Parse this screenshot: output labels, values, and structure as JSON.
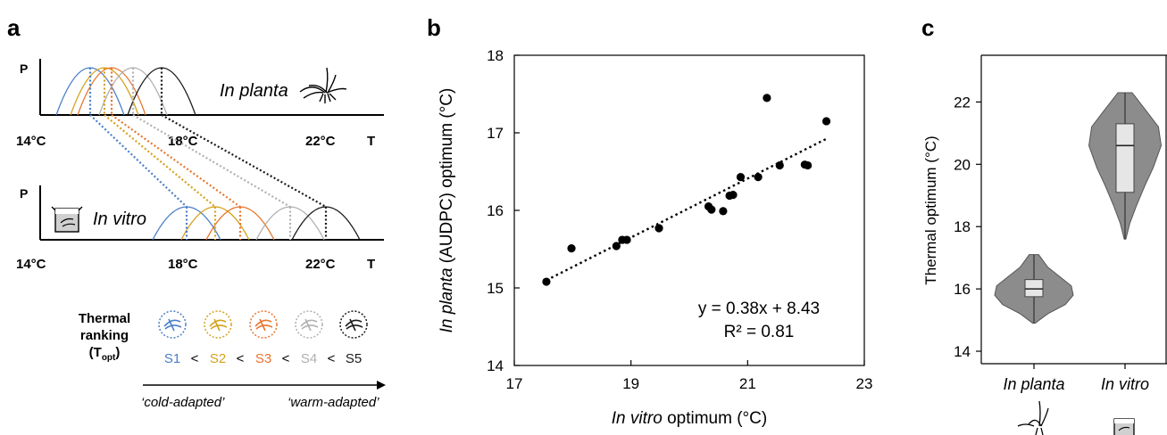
{
  "panels": {
    "a": {
      "label": "a",
      "top_axis": {
        "y_letter": "P",
        "ticks": [
          "14°C",
          "18°C",
          "22°C"
        ],
        "x_letter": "T",
        "title_italic": "In planta"
      },
      "bottom_axis": {
        "y_letter": "P",
        "ticks": [
          "14°C",
          "18°C",
          "22°C"
        ],
        "x_letter": "T",
        "title_italic": "In vitro"
      },
      "ranking": {
        "title_line1": "Thermal",
        "title_line2": "ranking",
        "title_line3_main": "(T",
        "title_line3_sub": "opt",
        "title_line3_end": ")",
        "lt": "<",
        "cold_label": "‘cold-adapted’",
        "warm_label": "‘warm-adapted’"
      },
      "strains": [
        {
          "name": "S1",
          "color": "#4a7fc8",
          "planta_opt": 15.4,
          "vitro_opt": 18.1
        },
        {
          "name": "S2",
          "color": "#d4a21c",
          "planta_opt": 15.8,
          "vitro_opt": 18.9
        },
        {
          "name": "S3",
          "color": "#e8752d",
          "planta_opt": 16.0,
          "vitro_opt": 19.6
        },
        {
          "name": "S4",
          "color": "#b0b0b0",
          "planta_opt": 16.6,
          "vitro_opt": 21.0
        },
        {
          "name": "S5",
          "color": "#1a1a1a",
          "planta_opt": 17.4,
          "vitro_opt": 22.0
        }
      ]
    },
    "b": {
      "label": "b",
      "equation": "y = 0.38x + 8.43",
      "r2": "R² = 0.81",
      "xlabel_italic": "In vitro",
      "xlabel_rest": " optimum (°C)",
      "ylabel_italic": "In  planta",
      "ylabel_rest": " (AUDPC) optimum (°C)"
    },
    "c": {
      "label": "c",
      "ylabel": "Thermal optimum (°C)",
      "categories": [
        "In planta",
        "In vitro"
      ]
    }
  },
  "chart_data": [
    {
      "type": "line",
      "panel": "a",
      "title": "",
      "xlabel": "T",
      "ylabel": "P",
      "tick_labels": [
        "14°C",
        "18°C",
        "22°C"
      ],
      "series": [
        {
          "name": "In planta",
          "optima": [
            15.4,
            15.8,
            16.0,
            16.6,
            17.4
          ]
        },
        {
          "name": "In vitro",
          "optima": [
            18.1,
            18.9,
            19.6,
            21.0,
            22.0
          ]
        }
      ]
    },
    {
      "type": "scatter",
      "panel": "b",
      "xlabel": "In vitro optimum (°C)",
      "ylabel": "In planta (AUDPC) optimum (°C)",
      "xlim": [
        17,
        23
      ],
      "ylim": [
        14,
        18
      ],
      "xticks": [
        "17",
        "19",
        "21",
        "23"
      ],
      "yticks": [
        "14",
        "15",
        "16",
        "17",
        "18"
      ],
      "points": [
        {
          "x": 17.55,
          "y": 15.08
        },
        {
          "x": 17.98,
          "y": 15.51
        },
        {
          "x": 18.75,
          "y": 15.54
        },
        {
          "x": 18.85,
          "y": 15.62
        },
        {
          "x": 18.93,
          "y": 15.62
        },
        {
          "x": 19.48,
          "y": 15.77
        },
        {
          "x": 20.33,
          "y": 16.05
        },
        {
          "x": 20.38,
          "y": 16.01
        },
        {
          "x": 20.58,
          "y": 15.99
        },
        {
          "x": 20.69,
          "y": 16.19
        },
        {
          "x": 20.75,
          "y": 16.2
        },
        {
          "x": 20.88,
          "y": 16.43
        },
        {
          "x": 21.18,
          "y": 16.43
        },
        {
          "x": 21.33,
          "y": 17.45
        },
        {
          "x": 21.55,
          "y": 16.58
        },
        {
          "x": 21.98,
          "y": 16.59
        },
        {
          "x": 22.03,
          "y": 16.58
        },
        {
          "x": 22.35,
          "y": 17.15
        }
      ],
      "fit": {
        "slope": 0.38,
        "intercept": 8.43,
        "x_from": 17.55,
        "x_to": 22.35
      }
    },
    {
      "type": "violin",
      "panel": "c",
      "ylabel": "Thermal optimum (°C)",
      "ylim": [
        13.6,
        23.5
      ],
      "yticks": [
        "14",
        "16",
        "18",
        "20",
        "22"
      ],
      "groups": [
        {
          "name": "In planta",
          "color": "#8c8c8c",
          "min": 14.9,
          "q1": 15.75,
          "median": 16.0,
          "q3": 16.3,
          "max": 17.1,
          "profile": [
            [
              14.9,
              0.03
            ],
            [
              15.2,
              0.35
            ],
            [
              15.5,
              0.8
            ],
            [
              15.8,
              1.0
            ],
            [
              16.1,
              0.95
            ],
            [
              16.4,
              0.65
            ],
            [
              16.7,
              0.35
            ],
            [
              17.1,
              0.12
            ]
          ]
        },
        {
          "name": "In vitro",
          "color": "#8c8c8c",
          "min": 17.6,
          "q1": 19.1,
          "median": 20.6,
          "q3": 21.3,
          "max": 22.3,
          "profile": [
            [
              17.6,
              0.02
            ],
            [
              18.1,
              0.12
            ],
            [
              18.7,
              0.3
            ],
            [
              19.3,
              0.5
            ],
            [
              19.9,
              0.72
            ],
            [
              20.6,
              0.92
            ],
            [
              21.2,
              0.85
            ],
            [
              21.7,
              0.55
            ],
            [
              22.3,
              0.18
            ]
          ]
        }
      ]
    }
  ]
}
